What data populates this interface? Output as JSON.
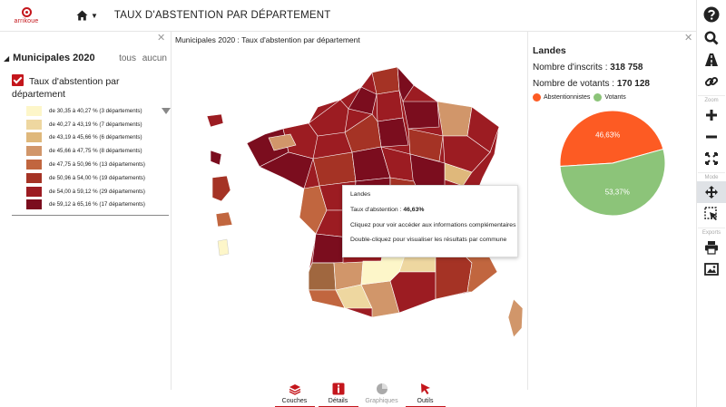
{
  "app": {
    "logo_text": "arrikoue",
    "title": "TAUX D'ABSTENTION PAR DÉPARTEMENT"
  },
  "layers_panel": {
    "group_name": "Municipales 2020",
    "all_link": "tous",
    "none_link": "aucun",
    "layer_name": "Taux d'abstention par département",
    "legend": [
      {
        "label": "de 30,35 à 40,27 % (3 départements)",
        "color": "#fdf6c9"
      },
      {
        "label": "de 40,27 à 43,19 % (7 départements)",
        "color": "#eed7a0"
      },
      {
        "label": "de 43,19 à 45,66 % (6 départements)",
        "color": "#dfb87b"
      },
      {
        "label": "de 45,66 à 47,75 % (8 départements)",
        "color": "#d1966a"
      },
      {
        "label": "de 47,75 à 50,96 % (13 départements)",
        "color": "#c1663f"
      },
      {
        "label": "de 50,96 à 54,00 % (19 départements)",
        "color": "#a53325"
      },
      {
        "label": "de 54,00 à 59,12 % (29 départements)",
        "color": "#9c1c22"
      },
      {
        "label": "de 59,12 à 65,16 % (17 départements)",
        "color": "#7b0d1e"
      }
    ]
  },
  "map": {
    "title": "Municipales 2020 : Taux d'abstention par département"
  },
  "tooltip": {
    "dept": "Landes",
    "rate_label": "Taux d'abstention :",
    "rate_value": "46,63%",
    "hint_click": "Cliquez pour voir accéder aux informations complémentaires",
    "hint_dblclick": "Double-cliquez pour visualiser les résultats par commune"
  },
  "info_panel": {
    "dept": "Landes",
    "inscrits_label": "Nombre d'inscrits :",
    "inscrits_value": "318 758",
    "votants_label": "Nombre de votants :",
    "votants_value": "170 128",
    "legend_abst": "Abstentionnistes",
    "legend_vot": "Votants",
    "color_abst": "#fd5b23",
    "color_vot": "#8cc479"
  },
  "chart_data": {
    "type": "pie",
    "categories": [
      "Abstentionnistes",
      "Votants"
    ],
    "values": [
      46.63,
      53.37
    ],
    "labels": [
      "46,63%",
      "53,37%"
    ],
    "colors": [
      "#fd5b23",
      "#8cc479"
    ]
  },
  "toolbar": {
    "zoom_label": "Zoom",
    "mode_label": "Mode",
    "exports_label": "Exports"
  },
  "tabs": [
    {
      "label": "Couches"
    },
    {
      "label": "Détails"
    },
    {
      "label": "Graphiques"
    },
    {
      "label": "Outils"
    }
  ]
}
